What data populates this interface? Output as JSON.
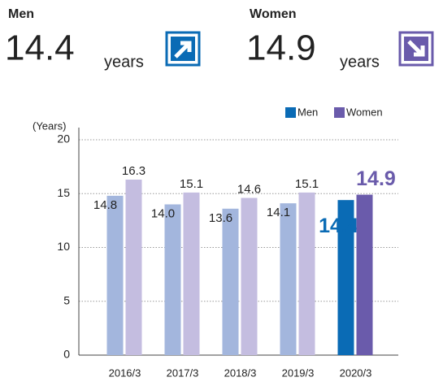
{
  "header": {
    "men": {
      "label": "Men",
      "value": "14.4",
      "unit": "years"
    },
    "women": {
      "label": "Women",
      "value": "14.9",
      "unit": "years"
    }
  },
  "chart_data": {
    "type": "bar",
    "y_label": "(Years)",
    "categories": [
      "2016/3",
      "2017/3",
      "2018/3",
      "2019/3",
      "2020/3"
    ],
    "series": [
      {
        "name": "Men",
        "color": "#0a6bb5",
        "colors": [
          "#a3b6dd",
          "#a3b6dd",
          "#a3b6dd",
          "#a3b6dd",
          "#0a6bb5"
        ],
        "values": [
          14.8,
          14.0,
          13.6,
          14.1,
          14.4
        ],
        "value_labels": [
          "14.8",
          "14.0",
          "13.6",
          "14.1",
          "14.4"
        ]
      },
      {
        "name": "Women",
        "color": "#6a5bab",
        "colors": [
          "#c4bde0",
          "#c4bde0",
          "#c4bde0",
          "#c4bde0",
          "#6a5bab"
        ],
        "values": [
          16.3,
          15.1,
          14.6,
          15.1,
          14.9
        ],
        "value_labels": [
          "16.3",
          "15.1",
          "14.6",
          "15.1",
          "14.9"
        ]
      }
    ],
    "ylim": [
      0,
      20
    ],
    "yticks": [
      0,
      5,
      10,
      15,
      20
    ],
    "grid": true,
    "legend": "top-right"
  }
}
